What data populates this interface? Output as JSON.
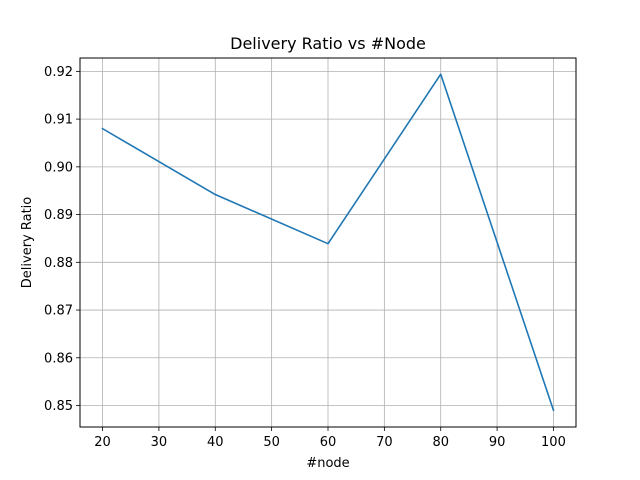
{
  "chart_data": {
    "type": "line",
    "title": "Delivery Ratio vs #Node",
    "xlabel": "#node",
    "ylabel": "Delivery Ratio",
    "x": [
      20,
      40,
      60,
      80,
      100
    ],
    "series": [
      {
        "values": [
          0.908,
          0.8942,
          0.8839,
          0.9194,
          0.849
        ],
        "color": "#1f77b4"
      }
    ],
    "xlim": [
      16,
      104
    ],
    "ylim": [
      0.8455,
      0.9228
    ],
    "xticks": [
      20,
      30,
      40,
      50,
      60,
      70,
      80,
      90,
      100
    ],
    "yticks": [
      0.85,
      0.86,
      0.87,
      0.88,
      0.89,
      0.9,
      0.91,
      0.92
    ],
    "xtick_labels": [
      "20",
      "30",
      "40",
      "50",
      "60",
      "70",
      "80",
      "90",
      "100"
    ],
    "ytick_labels": [
      "0.85",
      "0.86",
      "0.87",
      "0.88",
      "0.89",
      "0.90",
      "0.91",
      "0.92"
    ],
    "grid": true,
    "grid_color": "#b0b0b0",
    "legend": "none"
  }
}
